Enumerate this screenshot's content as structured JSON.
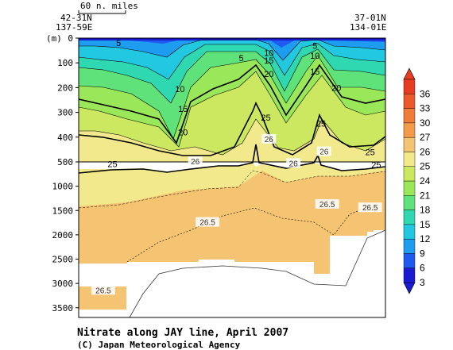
{
  "chart_data": {
    "type": "heatmap",
    "title": "Nitrate along JAY line, April 2007",
    "credit": "(C) Japan Meteorological Agency",
    "scale_bar_label": "60 n. miles",
    "station_left": {
      "lat": "42-31N",
      "lon": "137-59E"
    },
    "station_right": {
      "lat": "37-01N",
      "lon": "134-01E"
    },
    "ylabel": "(m)",
    "y_upper": {
      "ticks": [
        0,
        100,
        200,
        300,
        400,
        500
      ],
      "ylim": [
        0,
        500
      ]
    },
    "y_lower": {
      "ticks": [
        1000,
        1500,
        2000,
        2500,
        3000,
        3500
      ],
      "ylim": [
        500,
        3700
      ]
    },
    "colorbar": {
      "ticks": [
        3,
        6,
        9,
        12,
        15,
        18,
        21,
        24,
        25,
        26,
        27,
        30,
        33,
        36
      ],
      "colors": [
        "#1a1ad0",
        "#1e5af0",
        "#1e9cf0",
        "#22c8e0",
        "#2fd8b0",
        "#5fe27a",
        "#9ae85a",
        "#cbe860",
        "#f2e98c",
        "#f5c473",
        "#f29c4a",
        "#f07c3a",
        "#ec5a2c",
        "#e83c22"
      ]
    },
    "contour_labels": [
      {
        "value": "5",
        "x": 0.13,
        "depth": 20
      },
      {
        "value": "5",
        "x": 0.53,
        "depth": 80
      },
      {
        "value": "10",
        "x": 0.62,
        "depth": 60
      },
      {
        "value": "15",
        "x": 0.62,
        "depth": 90
      },
      {
        "value": "20",
        "x": 0.62,
        "depth": 145
      },
      {
        "value": "5",
        "x": 0.77,
        "depth": 30
      },
      {
        "value": "10",
        "x": 0.77,
        "depth": 70
      },
      {
        "value": "15",
        "x": 0.77,
        "depth": 135
      },
      {
        "value": "20",
        "x": 0.84,
        "depth": 200
      },
      {
        "value": "10",
        "x": 0.33,
        "depth": 205
      },
      {
        "value": "15",
        "x": 0.34,
        "depth": 285
      },
      {
        "value": "20",
        "x": 0.34,
        "depth": 380
      },
      {
        "value": "25",
        "x": 0.61,
        "depth": 320
      },
      {
        "value": "25",
        "x": 0.79,
        "depth": 345
      },
      {
        "value": "25",
        "x": 0.95,
        "depth": 460
      },
      {
        "value": "25",
        "x": 0.11,
        "depth": 540
      },
      {
        "value": "25",
        "x": 0.97,
        "depth": 560
      }
    ],
    "isopycnal_labels": [
      {
        "value": "26",
        "x": 0.62,
        "depth": 410
      },
      {
        "value": "26",
        "x": 0.7,
        "depth": 540
      },
      {
        "value": "26",
        "x": 0.8,
        "depth": 460
      },
      {
        "value": "26",
        "x": 0.38,
        "depth": 500
      },
      {
        "value": "26.5",
        "x": 0.42,
        "depth": 1750
      },
      {
        "value": "26.5",
        "x": 0.81,
        "depth": 1380
      },
      {
        "value": "26.5",
        "x": 0.95,
        "depth": 1450
      },
      {
        "value": "26.5",
        "x": 0.08,
        "depth": 3150
      }
    ]
  }
}
